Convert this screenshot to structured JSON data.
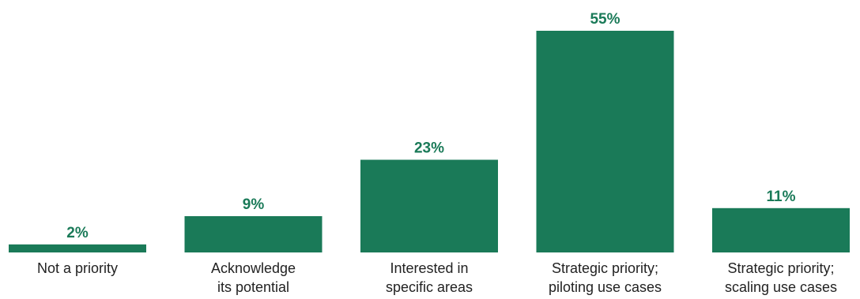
{
  "chart_data": {
    "type": "bar",
    "categories": [
      [
        "Not a priority"
      ],
      [
        "Acknowledge",
        "its potential"
      ],
      [
        "Interested in",
        "specific areas"
      ],
      [
        "Strategic priority;",
        "piloting use cases"
      ],
      [
        "Strategic priority;",
        "scaling use cases"
      ]
    ],
    "values": [
      2,
      9,
      23,
      55,
      11
    ],
    "value_labels": [
      "2%",
      "9%",
      "23%",
      "55%",
      "11%"
    ],
    "ylim": [
      0,
      55
    ],
    "grid": false,
    "legend": "none",
    "bar_color": "#1a7a58",
    "value_label_color": "#1a7a58"
  }
}
